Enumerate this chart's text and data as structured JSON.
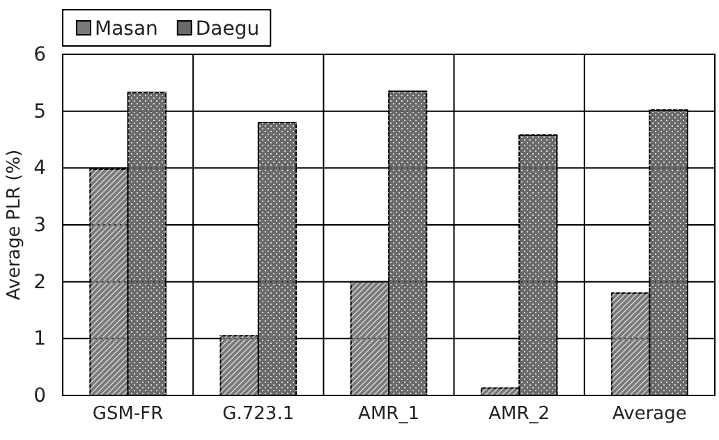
{
  "chart_data": {
    "type": "bar",
    "ylabel": "Average PLR (%)",
    "categories": [
      "GSM-FR",
      "G.723.1",
      "AMR_1",
      "AMR_2",
      "Average"
    ],
    "series": [
      {
        "name": "Masan",
        "color": "#7a7a7a",
        "values": [
          3.98,
          1.05,
          2.0,
          0.13,
          1.8
        ]
      },
      {
        "name": "Daegu",
        "color": "#6a6a6a",
        "values": [
          5.33,
          4.8,
          5.35,
          4.58,
          5.02
        ]
      }
    ],
    "ylim": [
      0,
      6
    ],
    "yticks": [
      0,
      1,
      2,
      3,
      4,
      5,
      6
    ],
    "grid": true,
    "legend": "top left"
  }
}
